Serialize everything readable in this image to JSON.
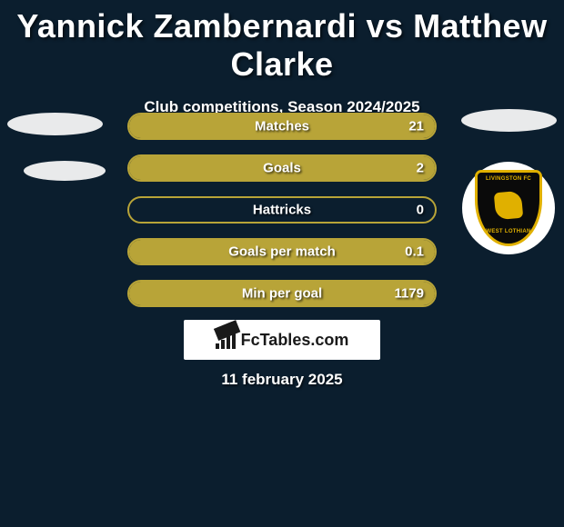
{
  "title": "Yannick Zambernardi vs Matthew Clarke",
  "subtitle": "Club competitions, Season 2024/2025",
  "stats": [
    {
      "label": "Matches",
      "value": "21",
      "fill_pct": 100
    },
    {
      "label": "Goals",
      "value": "2",
      "fill_pct": 100
    },
    {
      "label": "Hattricks",
      "value": "0",
      "fill_pct": 0
    },
    {
      "label": "Goals per match",
      "value": "0.1",
      "fill_pct": 100
    },
    {
      "label": "Min per goal",
      "value": "1179",
      "fill_pct": 100
    }
  ],
  "bar_color": "#b8a438",
  "background_color": "#0b1e2e",
  "brand": "FcTables.com",
  "date": "11 february 2025",
  "badge": {
    "top": "LIVINGSTON FC",
    "bottom": "WEST LOTHIAN"
  }
}
